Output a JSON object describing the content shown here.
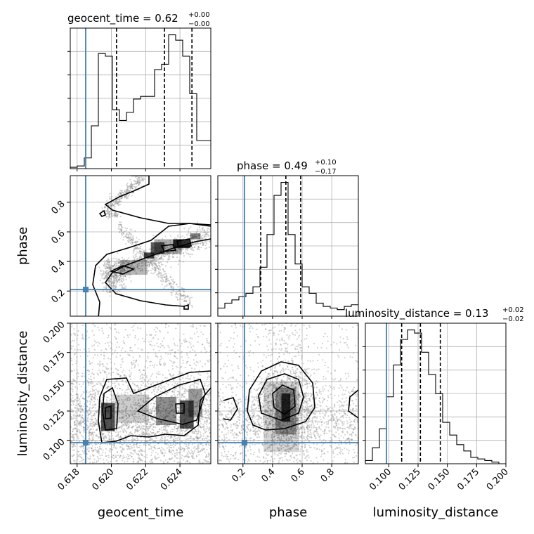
{
  "chart_data": {
    "type": "corner",
    "parameters": [
      "geocent_time",
      "phase",
      "luminosity_distance"
    ],
    "truths": {
      "geocent_time": 0.6185,
      "phase": 0.21,
      "luminosity_distance": 0.098
    },
    "colors": {
      "truth": "#4682b4",
      "hist": "#000000",
      "grid": "#b0b0b0",
      "points": "#808080"
    },
    "titles": [
      {
        "param": "geocent_time",
        "name": "geocent_time = 0.62",
        "sup": "+0.00",
        "sub": "−0.00"
      },
      {
        "param": "phase",
        "name": "phase = 0.49",
        "sup": "+0.10",
        "sub": "−0.17"
      },
      {
        "param": "luminosity_distance",
        "name": "luminosity_distance = 0.13",
        "sup": "+0.02",
        "sub": "−0.02"
      }
    ],
    "ranges": {
      "geocent_time": [
        0.6176,
        0.6258
      ],
      "phase": [
        0.03,
        0.98
      ],
      "luminosity_distance": [
        0.08,
        0.2
      ]
    },
    "ticks": {
      "geocent_time": {
        "values": [
          0.618,
          0.62,
          0.622,
          0.624
        ],
        "labels": [
          "0.618",
          "0.620",
          "0.622",
          "0.624"
        ]
      },
      "phase": {
        "values": [
          0.2,
          0.4,
          0.6,
          0.8
        ],
        "labels": [
          "0.2",
          "0.4",
          "0.6",
          "0.8"
        ]
      },
      "luminosity_distance": {
        "values": [
          0.1,
          0.125,
          0.15,
          0.175,
          0.2
        ],
        "labels": [
          "0.100",
          "0.125",
          "0.150",
          "0.175",
          "0.200"
        ]
      }
    },
    "axis_labels": {
      "x": [
        "geocent_time",
        "phase",
        "luminosity_distance"
      ],
      "y": [
        "phase",
        "luminosity_distance"
      ]
    },
    "histograms": {
      "geocent_time": {
        "edges": [
          0.6176,
          0.61801,
          0.61842,
          0.61883,
          0.61924,
          0.61965,
          0.62006,
          0.62047,
          0.62088,
          0.62129,
          0.6217,
          0.62211,
          0.62252,
          0.62293,
          0.62334,
          0.62375,
          0.62416,
          0.62457,
          0.62498,
          0.62539,
          0.6258
        ],
        "counts": [
          1,
          2,
          8,
          32,
          86,
          84,
          44,
          36,
          42,
          52,
          54,
          54,
          74,
          78,
          100,
          96,
          84,
          56,
          21,
          21
        ],
        "quantiles": [
          0.6203,
          0.6231,
          0.6247
        ]
      },
      "phase": {
        "edges": [
          0.03,
          0.0775,
          0.125,
          0.1725,
          0.22,
          0.2675,
          0.315,
          0.3625,
          0.41,
          0.4575,
          0.505,
          0.5525,
          0.6,
          0.6475,
          0.695,
          0.7425,
          0.79,
          0.8375,
          0.885,
          0.9325,
          0.98
        ],
        "counts": [
          5,
          8,
          10,
          12,
          14,
          18,
          30,
          50,
          74,
          82,
          50,
          32,
          18,
          14,
          8,
          6,
          5,
          4,
          6,
          7
        ],
        "quantiles": [
          0.32,
          0.49,
          0.59
        ]
      },
      "luminosity_distance": {
        "edges": [
          0.08,
          0.086,
          0.092,
          0.098,
          0.104,
          0.11,
          0.116,
          0.122,
          0.128,
          0.134,
          0.14,
          0.146,
          0.152,
          0.158,
          0.164,
          0.17,
          0.176,
          0.182,
          0.188,
          0.194,
          0.2
        ],
        "counts": [
          2,
          10,
          22,
          42,
          62,
          78,
          84,
          82,
          70,
          56,
          44,
          26,
          18,
          12,
          8,
          4,
          3,
          2,
          1,
          0
        ],
        "quantiles": [
          0.111,
          0.127,
          0.144
        ]
      }
    }
  }
}
